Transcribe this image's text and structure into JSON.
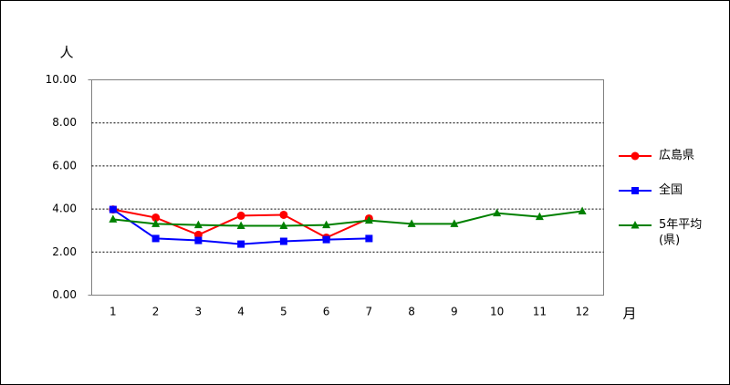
{
  "chart_data": {
    "type": "line",
    "y_label": "人",
    "x_label": "月",
    "categories": [
      "1",
      "2",
      "3",
      "4",
      "5",
      "6",
      "7",
      "8",
      "9",
      "10",
      "11",
      "12"
    ],
    "series": [
      {
        "name": "広島県",
        "color": "#ff0000",
        "marker": "circle",
        "values": [
          3.98,
          3.6,
          2.8,
          3.69,
          3.73,
          2.67,
          3.56,
          null,
          null,
          null,
          null,
          null
        ]
      },
      {
        "name": "全国",
        "color": "#0000ff",
        "marker": "square",
        "values": [
          3.98,
          2.63,
          2.54,
          2.37,
          2.5,
          2.58,
          2.63,
          null,
          null,
          null,
          null,
          null
        ]
      },
      {
        "name": "5年平均(県)",
        "color": "#008000",
        "marker": "triangle",
        "values": [
          3.52,
          3.31,
          3.26,
          3.22,
          3.22,
          3.26,
          3.47,
          3.31,
          3.31,
          3.81,
          3.64,
          3.9
        ]
      }
    ],
    "ylim": [
      0,
      10
    ],
    "yticks": [
      {
        "value": 0,
        "label": "0.00"
      },
      {
        "value": 2,
        "label": "2.00"
      },
      {
        "value": 4,
        "label": "4.00"
      },
      {
        "value": 6,
        "label": "6.00"
      },
      {
        "value": 8,
        "label": "8.00"
      },
      {
        "value": 10,
        "label": "10.00"
      }
    ],
    "grid": true
  }
}
